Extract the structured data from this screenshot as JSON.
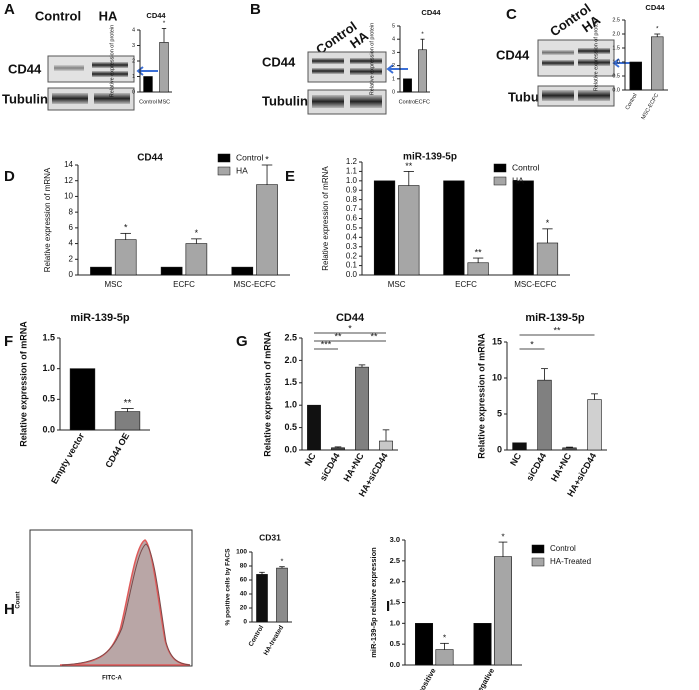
{
  "panel_labels": [
    "A",
    "B",
    "C",
    "D",
    "E",
    "F",
    "G",
    "H",
    "I"
  ],
  "blots": [
    {
      "lanes": [
        "Control",
        "HA"
      ],
      "rows": [
        "CD44",
        "Tubulin"
      ]
    },
    {
      "lanes": [
        "Control",
        "HA"
      ],
      "rows": [
        "CD44",
        "Tubulin"
      ]
    },
    {
      "lanes": [
        "Control",
        "HA"
      ],
      "rows": [
        "CD44",
        "Tubulin"
      ]
    }
  ],
  "flow": {
    "xlabel": "FITC-A",
    "ylabel": "Count"
  },
  "chart_data": [
    {
      "type": "bar",
      "title": "CD44",
      "ylabel": "Relative expression of protein",
      "categories": [
        "Control",
        "MSC"
      ],
      "values": [
        1,
        3.2
      ],
      "errors": [
        null,
        0.9
      ],
      "colors": [
        "#000000",
        "#a6a6a6"
      ],
      "annotations": [
        null,
        "*"
      ],
      "ylim": [
        0,
        4
      ],
      "yticks": [
        0,
        1,
        2,
        3,
        4
      ]
    },
    {
      "type": "bar",
      "title": "CD44",
      "ylabel": "Relative expression of protein",
      "categories": [
        "Control",
        "ECFC"
      ],
      "values": [
        1,
        3.2
      ],
      "errors": [
        null,
        0.8
      ],
      "colors": [
        "#000000",
        "#a6a6a6"
      ],
      "annotations": [
        null,
        "*"
      ],
      "ylim": [
        0,
        5
      ],
      "yticks": [
        0,
        1,
        2,
        3,
        4,
        5
      ]
    },
    {
      "type": "bar",
      "title": "CD44",
      "ylabel": "Relative expression of protein",
      "categories": [
        "Control",
        "MSC-ECFC"
      ],
      "values": [
        1,
        1.9
      ],
      "errors": [
        null,
        0.1
      ],
      "colors": [
        "#000000",
        "#a6a6a6"
      ],
      "annotations": [
        null,
        "*"
      ],
      "ylim": [
        0,
        2.5
      ],
      "yticks": [
        {
          "value": 0,
          "label": "0.0"
        },
        0.5,
        {
          "value": 1,
          "label": "1.0"
        },
        1.5,
        {
          "value": 2,
          "label": "2.0"
        },
        2.5
      ]
    },
    {
      "type": "grouped_bar",
      "title": "CD44",
      "ylabel": "Relative expression of mRNA",
      "categories": [
        "MSC",
        "ECFC",
        "MSC-ECFC"
      ],
      "series": [
        {
          "name": "Control",
          "color": "#000000",
          "values": [
            1,
            1,
            1
          ],
          "errors": [
            null,
            null,
            null
          ],
          "annotations": [
            null,
            null,
            null
          ]
        },
        {
          "name": "HA",
          "color": "#a6a6a6",
          "values": [
            4.5,
            4,
            11.5
          ],
          "errors": [
            0.8,
            0.6,
            2.5
          ],
          "annotations": [
            "*",
            "*",
            "*"
          ]
        }
      ],
      "ylim": [
        0,
        14
      ],
      "yticks": [
        0,
        2,
        4,
        6,
        8,
        10,
        12,
        14
      ]
    },
    {
      "type": "grouped_bar",
      "title": "miR-139-5p",
      "ylabel": "Relative expression of mRNA",
      "categories": [
        "MSC",
        "ECFC",
        "MSC-ECFC"
      ],
      "series": [
        {
          "name": "Control",
          "color": "#000000",
          "values": [
            1,
            1,
            1
          ],
          "errors": [
            null,
            null,
            null
          ],
          "annotations": [
            null,
            null,
            null
          ]
        },
        {
          "name": "HA",
          "color": "#a6a6a6",
          "values": [
            0.95,
            0.13,
            0.34
          ],
          "errors": [
            0.15,
            0.05,
            0.15
          ],
          "annotations": [
            "**",
            "**",
            "*"
          ]
        }
      ],
      "ylim": [
        0,
        1.2
      ],
      "yticks": [
        {
          "value": 0,
          "label": "0.0"
        },
        0.1,
        0.2,
        0.3,
        0.4,
        0.5,
        0.6,
        0.7,
        0.8,
        0.9,
        {
          "value": 1,
          "label": "1.0"
        },
        1.1,
        1.2
      ]
    },
    {
      "type": "bar",
      "title": "miR-139-5p",
      "ylabel": "Relative expression of mRNA",
      "categories": [
        "Empty vector",
        "CD44 OE"
      ],
      "values": [
        1,
        0.3
      ],
      "errors": [
        null,
        0.05
      ],
      "colors": [
        "#000000",
        "#7f7f7f"
      ],
      "annotations": [
        null,
        "**"
      ],
      "ylim": [
        0,
        1.5
      ],
      "yticks": [
        {
          "value": 0,
          "label": "0.0"
        },
        0.5,
        {
          "value": 1,
          "label": "1.0"
        },
        1.5
      ]
    },
    {
      "type": "bar",
      "title": "CD44",
      "ylabel": "Relative expression of mRNA",
      "categories": [
        "NC",
        "siCD44",
        "HA+NC",
        "HA+siCD44"
      ],
      "values": [
        1,
        0.05,
        1.85,
        0.2
      ],
      "errors": [
        null,
        0.02,
        0.05,
        0.25
      ],
      "colors": [
        "#111111",
        "#444444",
        "#808080",
        "#c8c8c8"
      ],
      "brackets": [
        {
          "from": 0,
          "to": 1,
          "label": "***"
        },
        {
          "from": 0,
          "to": 2,
          "label": "**"
        },
        {
          "from": 0,
          "to": 3,
          "label": "*"
        },
        {
          "from": 2,
          "to": 3,
          "label": "**"
        }
      ],
      "ylim": [
        0,
        2.5
      ],
      "yticks": [
        {
          "value": 0,
          "label": "0.0"
        },
        0.5,
        {
          "value": 1,
          "label": "1.0"
        },
        1.5,
        {
          "value": 2,
          "label": "2.0"
        },
        2.5
      ]
    },
    {
      "type": "bar",
      "title": "miR-139-5p",
      "ylabel": "Relative expression of mRNA",
      "categories": [
        "NC",
        "siCD44",
        "HA+NC",
        "HA+siCD44"
      ],
      "values": [
        1,
        9.7,
        0.3,
        7
      ],
      "errors": [
        null,
        1.6,
        0.1,
        0.8
      ],
      "colors": [
        "#111111",
        "#808080",
        "#555555",
        "#d0d0d0"
      ],
      "brackets": [
        {
          "from": 0,
          "to": 1,
          "label": "*"
        },
        {
          "from": 0,
          "to": 3,
          "label": "**"
        }
      ],
      "ylim": [
        0,
        15
      ],
      "yticks": [
        0,
        5,
        10,
        15
      ]
    },
    {
      "type": "bar",
      "title": "CD31",
      "ylabel": "% positive cells by FACS",
      "categories": [
        "Control",
        "HA-treated"
      ],
      "values": [
        68,
        77
      ],
      "errors": [
        3,
        2
      ],
      "colors": [
        "#111111",
        "#8c8c8c"
      ],
      "annotations": [
        null,
        "*"
      ],
      "ylim": [
        0,
        100
      ],
      "yticks": [
        0,
        20,
        40,
        60,
        80,
        100
      ]
    },
    {
      "type": "grouped_bar",
      "ylabel": "miR-139-5p relative expression",
      "categories": [
        "CD31 positive",
        "CD31 negative"
      ],
      "series": [
        {
          "name": "Control",
          "color": "#000000",
          "values": [
            1,
            1
          ],
          "errors": [
            null,
            null
          ],
          "annotations": [
            null,
            null
          ]
        },
        {
          "name": "HA-Treated",
          "color": "#a6a6a6",
          "values": [
            0.37,
            2.6
          ],
          "errors": [
            0.15,
            0.35
          ],
          "annotations": [
            "*",
            "*"
          ]
        }
      ],
      "ylim": [
        0,
        3
      ],
      "yticks": [
        {
          "value": 0,
          "label": "0.0"
        },
        0.5,
        {
          "value": 1,
          "label": "1.0"
        },
        1.5,
        {
          "value": 2,
          "label": "2.0"
        },
        2.5,
        {
          "value": 3,
          "label": "3.0"
        }
      ]
    }
  ]
}
